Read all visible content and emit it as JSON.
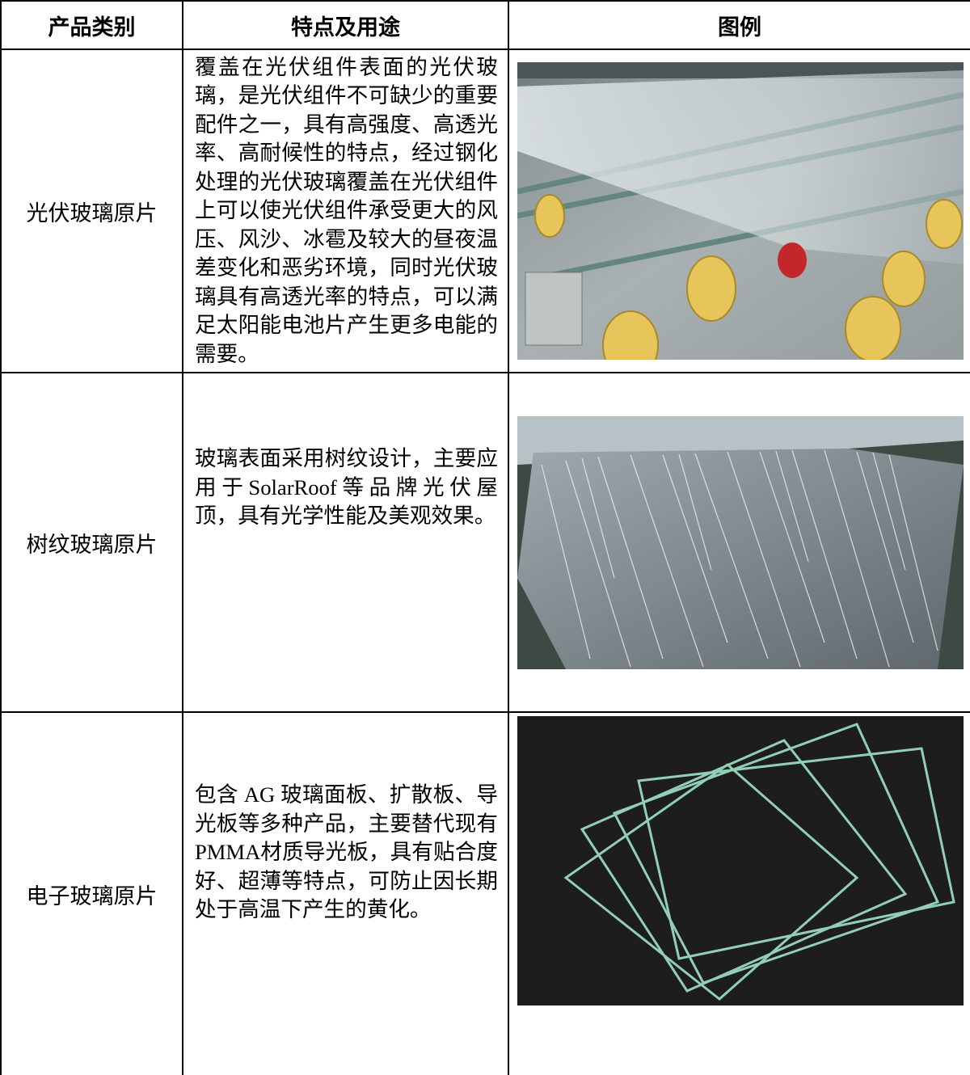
{
  "table": {
    "headers": [
      "产品类别",
      "特点及用途",
      "图例"
    ],
    "rows": [
      [
        "光伏玻璃原片",
        "覆盖在光伏组件表面的光伏玻璃，是光伏组件不可缺少的重要配件之一，具有高强度、高透光率、高耐候性的特点，经过钢化处理的光伏玻璃覆盖在光伏组件上可以使光伏组件承受更大的风压、风沙、冰雹及较大的昼夜温差变化和恶劣环境，同时光伏玻璃具有高透光率的特点，可以满足太阳能电池片产生更多电能的需要。"
      ],
      [
        "树纹玻璃原片",
        "玻璃表面采用树纹设计，主要应用于SolarRoof等品牌光伏屋顶，具有光学性能及美观效果。"
      ],
      [
        "电子玻璃原片",
        "包含 AG 玻璃面板、扩散板、导光板等多种产品，主要替代现有PMMA材质导光板，具有贴合度好、超薄等特点，可防止因长期处于高温下产生的黄化。"
      ]
    ]
  }
}
